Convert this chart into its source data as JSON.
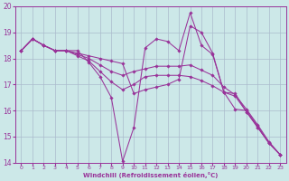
{
  "xlabel": "Windchill (Refroidissement éolien,°C)",
  "bg_color": "#cce8e8",
  "line_color": "#993399",
  "grid_color": "#aabbcc",
  "series": [
    {
      "x": [
        0,
        1,
        2,
        3,
        4,
        5,
        6,
        7,
        8,
        9,
        10,
        11,
        12,
        13,
        14,
        15,
        16,
        17,
        18,
        19,
        20,
        21,
        22,
        23
      ],
      "y": [
        18.3,
        18.75,
        18.5,
        18.3,
        18.3,
        18.3,
        17.85,
        17.3,
        16.5,
        14.05,
        15.35,
        18.4,
        18.75,
        18.65,
        18.3,
        19.75,
        18.5,
        18.15,
        16.7,
        16.65,
        15.95,
        15.35,
        14.75,
        14.3
      ]
    },
    {
      "x": [
        0,
        1,
        2,
        3,
        4,
        5,
        6,
        7,
        8,
        9,
        10,
        11,
        12,
        13,
        14,
        15,
        16,
        17,
        18,
        19,
        20,
        21,
        22,
        23
      ],
      "y": [
        18.3,
        18.75,
        18.5,
        18.3,
        18.3,
        18.1,
        17.9,
        17.5,
        17.1,
        16.8,
        17.0,
        17.3,
        17.35,
        17.35,
        17.35,
        17.3,
        17.15,
        16.95,
        16.7,
        16.55,
        15.95,
        15.35,
        14.75,
        14.3
      ]
    },
    {
      "x": [
        0,
        1,
        2,
        3,
        4,
        5,
        6,
        7,
        8,
        9,
        10,
        11,
        12,
        13,
        14,
        15,
        16,
        17,
        18,
        19,
        20,
        21,
        22,
        23
      ],
      "y": [
        18.3,
        18.75,
        18.5,
        18.3,
        18.3,
        18.15,
        18.0,
        17.75,
        17.5,
        17.35,
        17.5,
        17.6,
        17.7,
        17.7,
        17.7,
        17.75,
        17.55,
        17.35,
        16.9,
        16.6,
        16.05,
        15.45,
        14.8,
        14.3
      ]
    },
    {
      "x": [
        0,
        1,
        2,
        3,
        4,
        5,
        6,
        7,
        8,
        9,
        10,
        11,
        12,
        13,
        14,
        15,
        16,
        17,
        18,
        19,
        20,
        21,
        22,
        23
      ],
      "y": [
        18.3,
        18.75,
        18.5,
        18.3,
        18.3,
        18.2,
        18.1,
        18.0,
        17.9,
        17.8,
        16.65,
        16.8,
        16.9,
        17.0,
        17.2,
        19.25,
        19.0,
        18.2,
        16.7,
        16.05,
        16.0,
        15.4,
        14.75,
        14.3
      ]
    }
  ],
  "xlim": [
    -0.5,
    23.5
  ],
  "ylim": [
    14,
    20
  ],
  "yticks": [
    14,
    15,
    16,
    17,
    18,
    19,
    20
  ],
  "xticks": [
    0,
    1,
    2,
    3,
    4,
    5,
    6,
    7,
    8,
    9,
    10,
    11,
    12,
    13,
    14,
    15,
    16,
    17,
    18,
    19,
    20,
    21,
    22,
    23
  ],
  "xticklabels": [
    "0",
    "1",
    "2",
    "3",
    "4",
    "5",
    "6",
    "7",
    "8",
    "9",
    "10",
    "11",
    "12",
    "13",
    "14",
    "15",
    "16",
    "17",
    "18",
    "19",
    "20",
    "21",
    "22",
    "23"
  ]
}
